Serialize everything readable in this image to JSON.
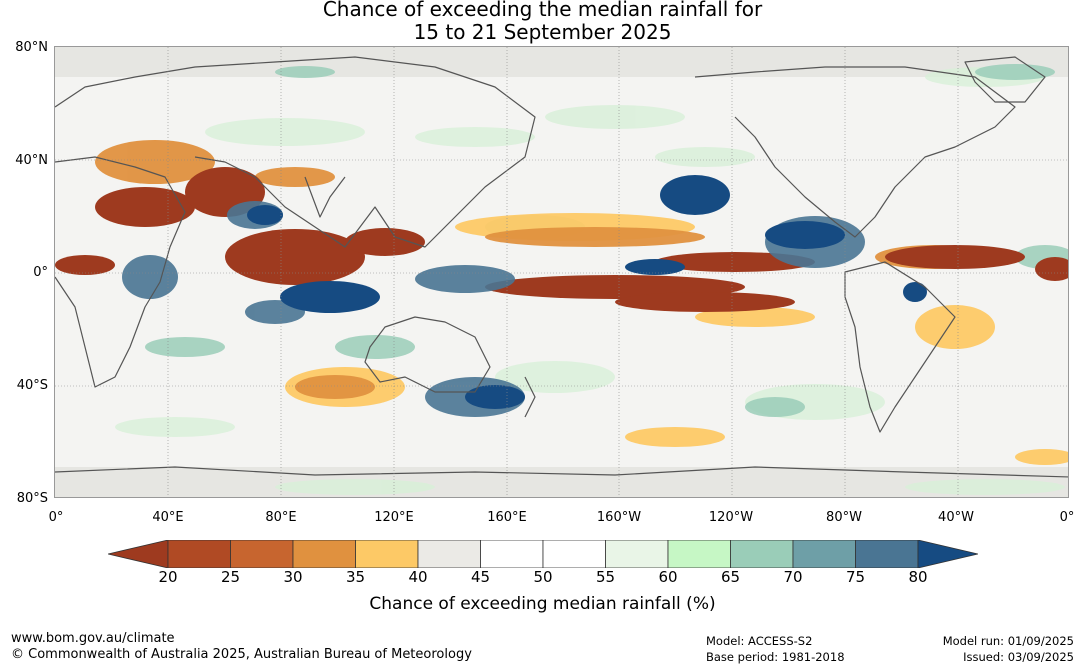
{
  "title": {
    "line1": "Chance of exceeding the median rainfall for",
    "line2": "15 to 21 September 2025"
  },
  "map": {
    "lat_labels": [
      "80°N",
      "40°N",
      "0°",
      "40°S",
      "80°S"
    ],
    "lon_labels": [
      "0°",
      "40°E",
      "80°E",
      "120°E",
      "160°E",
      "160°W",
      "120°W",
      "80°W",
      "40°W",
      "0°"
    ],
    "colors": {
      "land_outline": "#555555",
      "grid": "#888888"
    }
  },
  "colorbar": {
    "ticks": [
      "20",
      "25",
      "30",
      "35",
      "40",
      "45",
      "50",
      "55",
      "60",
      "65",
      "70",
      "75",
      "80"
    ],
    "colors": [
      "#9e3a1f",
      "#b04a24",
      "#c7652f",
      "#e0913f",
      "#fdc966",
      "#ebeae6",
      "#ffffff",
      "#ffffff",
      "#e9f5e7",
      "#c6f7c5",
      "#9acdb8",
      "#6e9fa7",
      "#4a7593",
      "#164b82"
    ],
    "title": "Chance of exceeding median rainfall (%)"
  },
  "footer": {
    "url": "www.bom.gov.au/climate",
    "copyright": "© Commonwealth of Australia 2025, Australian Bureau of Meteorology",
    "model": "Model: ACCESS-S2",
    "base_period": "Base period: 1981-2018",
    "model_run": "Model run: 01/09/2025",
    "issued": "Issued: 03/09/2025"
  }
}
